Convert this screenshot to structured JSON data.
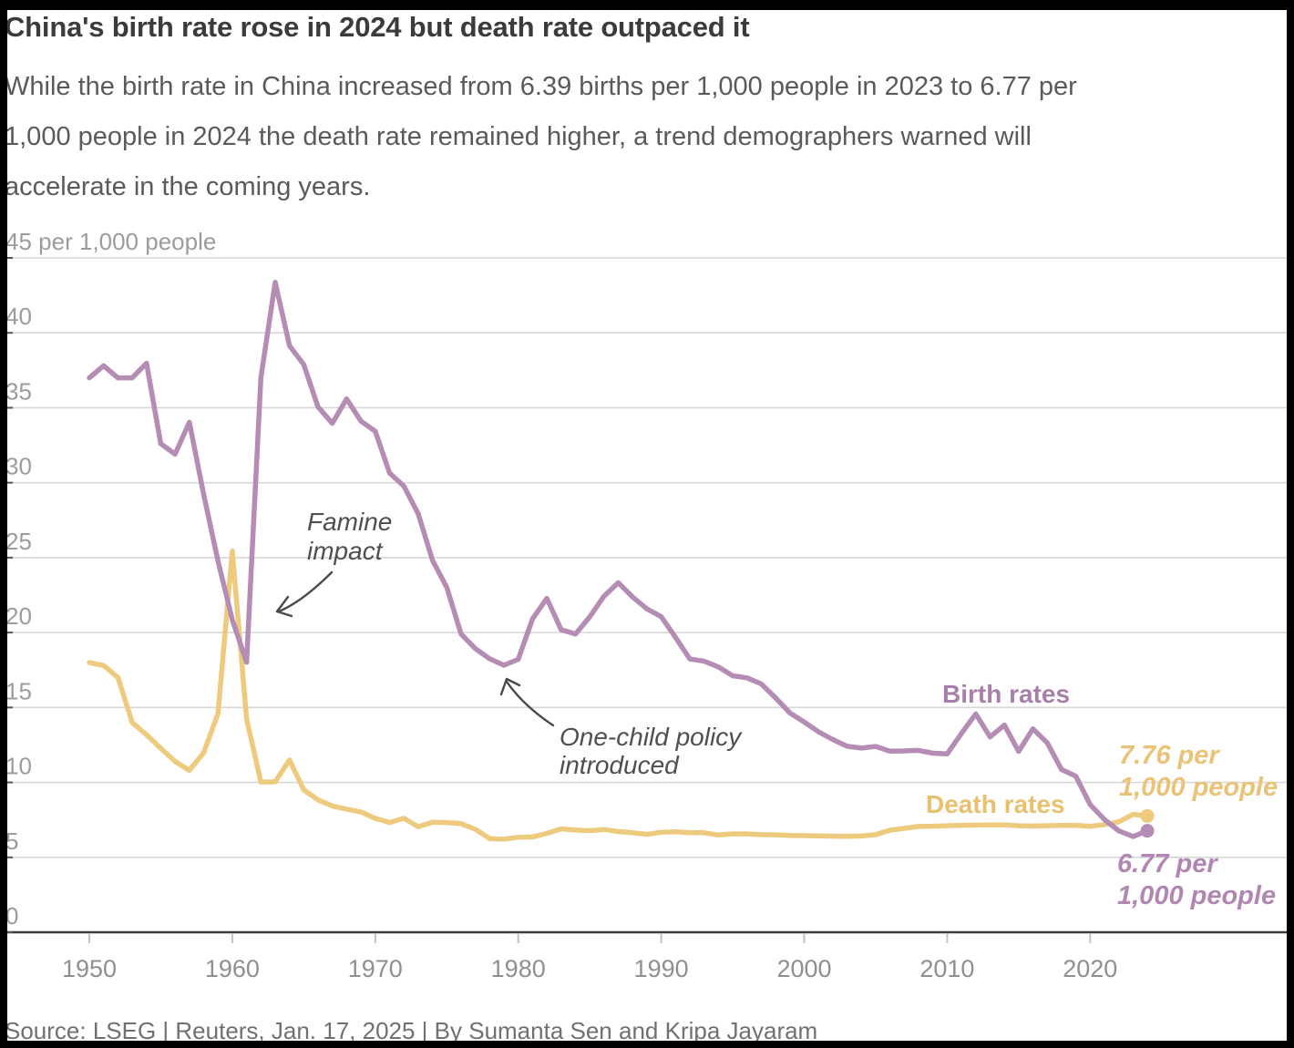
{
  "header": {
    "title": "China's birth rate rose in 2024 but death rate outpaced it",
    "subtitle_lines": [
      "While the birth rate in China increased from 6.39 births per 1,000 people in 2023 to 6.77 per",
      "1,000 people in 2024 the death rate remained higher, a trend demographers warned will",
      "accelerate in the coming years."
    ]
  },
  "footer": {
    "source": "Source: LSEG | Reuters, Jan. 17, 2025 | By Sumanta Sen and Kripa Jayaram"
  },
  "colors": {
    "birth_line": "#b48cb4",
    "death_line": "#eeca7e",
    "birth_text": "#a87fa8",
    "death_text": "#e7c070",
    "grid": "#d7d7d7",
    "axis": "#3b3b3b",
    "x_tick": "#c2c2c2",
    "y_stub": "#555555",
    "tick_label": "#8f8f8f",
    "y_label": "#9c9c9c",
    "annotation": "#4f4f4f",
    "arrow": "#4a4a4a"
  },
  "chart_data": {
    "type": "line",
    "title": "China's birth rate rose in 2024 but death rate outpaced it",
    "y_axis_top_label": "45 per 1,000 people",
    "ylim": [
      0,
      45
    ],
    "xlim": [
      1950,
      2024
    ],
    "grid": true,
    "y_ticks": [
      0,
      5,
      10,
      15,
      20,
      25,
      30,
      35,
      40,
      45
    ],
    "x_ticks": [
      1950,
      1960,
      1970,
      1980,
      1990,
      2000,
      2010,
      2020
    ],
    "x": [
      1950,
      1951,
      1952,
      1953,
      1954,
      1955,
      1956,
      1957,
      1958,
      1959,
      1960,
      1961,
      1962,
      1963,
      1964,
      1965,
      1966,
      1967,
      1968,
      1969,
      1970,
      1971,
      1972,
      1973,
      1974,
      1975,
      1976,
      1977,
      1978,
      1979,
      1980,
      1981,
      1982,
      1983,
      1984,
      1985,
      1986,
      1987,
      1988,
      1989,
      1990,
      1991,
      1992,
      1993,
      1994,
      1995,
      1996,
      1997,
      1998,
      1999,
      2000,
      2001,
      2002,
      2003,
      2004,
      2005,
      2006,
      2007,
      2008,
      2009,
      2010,
      2011,
      2012,
      2013,
      2014,
      2015,
      2016,
      2017,
      2018,
      2019,
      2020,
      2021,
      2022,
      2023,
      2024
    ],
    "series": [
      {
        "id": "death",
        "name": "Death rates",
        "color": "#eeca7e",
        "values": [
          18.0,
          17.8,
          17.0,
          14.0,
          13.18,
          12.28,
          11.4,
          10.8,
          11.98,
          14.59,
          25.43,
          14.24,
          10.02,
          10.04,
          11.5,
          9.5,
          8.83,
          8.43,
          8.21,
          8.03,
          7.6,
          7.32,
          7.61,
          7.04,
          7.34,
          7.32,
          7.25,
          6.87,
          6.25,
          6.21,
          6.34,
          6.36,
          6.6,
          6.9,
          6.82,
          6.78,
          6.86,
          6.72,
          6.64,
          6.54,
          6.67,
          6.7,
          6.64,
          6.64,
          6.49,
          6.57,
          6.56,
          6.51,
          6.5,
          6.46,
          6.45,
          6.43,
          6.41,
          6.4,
          6.42,
          6.51,
          6.81,
          6.93,
          7.06,
          7.08,
          7.11,
          7.14,
          7.15,
          7.16,
          7.16,
          7.11,
          7.09,
          7.11,
          7.13,
          7.14,
          7.07,
          7.18,
          7.37,
          7.87,
          7.76
        ]
      },
      {
        "id": "birth",
        "name": "Birth rates",
        "color": "#b48cb4",
        "values": [
          37.0,
          37.8,
          37.0,
          37.0,
          37.97,
          32.6,
          31.9,
          34.03,
          29.22,
          24.78,
          20.86,
          18.02,
          37.01,
          43.37,
          39.14,
          37.88,
          35.05,
          33.96,
          35.59,
          34.11,
          33.43,
          30.65,
          29.77,
          27.93,
          24.82,
          23.01,
          19.91,
          18.93,
          18.25,
          17.82,
          18.21,
          20.91,
          22.28,
          20.19,
          19.9,
          21.04,
          22.43,
          23.33,
          22.37,
          21.58,
          21.06,
          19.68,
          18.24,
          18.09,
          17.7,
          17.12,
          16.98,
          16.57,
          15.64,
          14.64,
          14.03,
          13.38,
          12.86,
          12.41,
          12.29,
          12.4,
          12.09,
          12.1,
          12.14,
          11.95,
          11.9,
          13.27,
          14.57,
          13.03,
          13.83,
          12.07,
          13.57,
          12.64,
          10.86,
          10.41,
          8.52,
          7.52,
          6.77,
          6.39,
          6.77
        ]
      }
    ],
    "annotations": {
      "famine": {
        "lines": [
          "Famine",
          "impact"
        ]
      },
      "one_child": {
        "lines": [
          "One-child policy",
          "introduced"
        ]
      }
    },
    "end_labels": {
      "death": {
        "lines": [
          "7.76 per",
          "1,000 people"
        ]
      },
      "birth": {
        "lines": [
          "6.77 per",
          "1,000 people"
        ]
      }
    },
    "legend_position": "inline-labels"
  }
}
